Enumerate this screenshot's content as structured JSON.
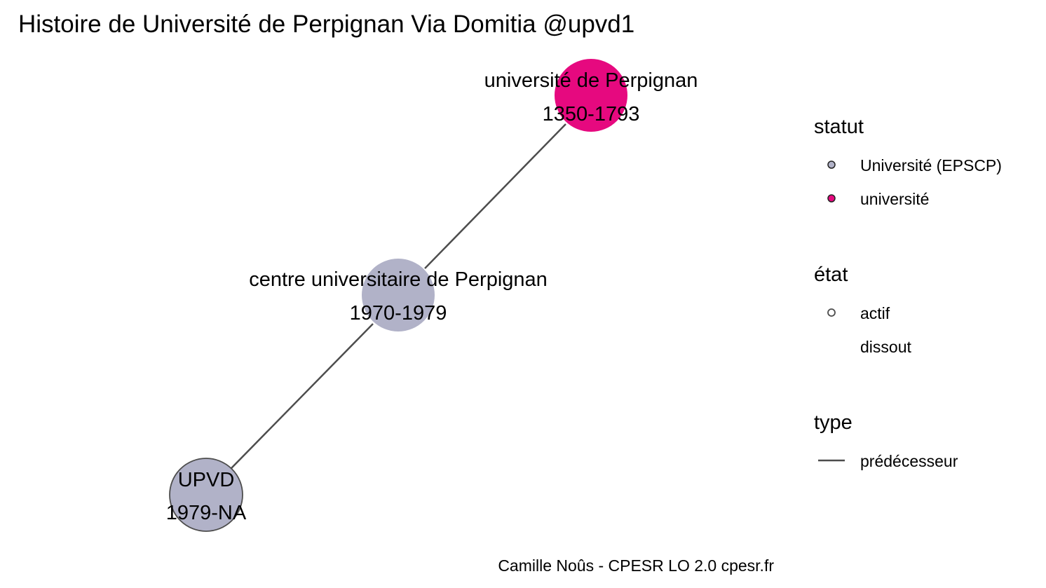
{
  "title": "Histoire de Université de Perpignan Via Domitia @upvd1",
  "caption": "Camille Noûs - CPESR LO 2.0 cpesr.fr",
  "colors": {
    "universite_epscp": "#b1b2c8",
    "universite": "#e6097f",
    "edge": "#4d4d4d",
    "active_stroke": "#4d4d4d"
  },
  "nodes": [
    {
      "id": "univ-perpignan",
      "label": "université de Perpignan",
      "dates": "1350-1793",
      "statut": "université",
      "etat": "dissout"
    },
    {
      "id": "centre-univ",
      "label": "centre universitaire de Perpignan",
      "dates": "1970-1979",
      "statut": "Université (EPSCP)",
      "etat": "dissout"
    },
    {
      "id": "upvd",
      "label": "UPVD",
      "dates": "1979-NA",
      "statut": "Université (EPSCP)",
      "etat": "actif"
    }
  ],
  "edges": [
    {
      "from": "centre-univ",
      "to": "univ-perpignan",
      "type": "prédécesseur"
    },
    {
      "from": "upvd",
      "to": "centre-univ",
      "type": "prédécesseur"
    }
  ],
  "legend": {
    "statut": {
      "title": "statut",
      "items": [
        {
          "label": "Université (EPSCP)",
          "color": "#b1b2c8"
        },
        {
          "label": "université",
          "color": "#e6097f"
        }
      ]
    },
    "etat": {
      "title": "état",
      "items": [
        {
          "label": "actif",
          "symbol": "circle-outline"
        },
        {
          "label": "dissout",
          "symbol": "none"
        }
      ]
    },
    "type": {
      "title": "type",
      "items": [
        {
          "label": "prédécesseur",
          "symbol": "line"
        }
      ]
    }
  }
}
